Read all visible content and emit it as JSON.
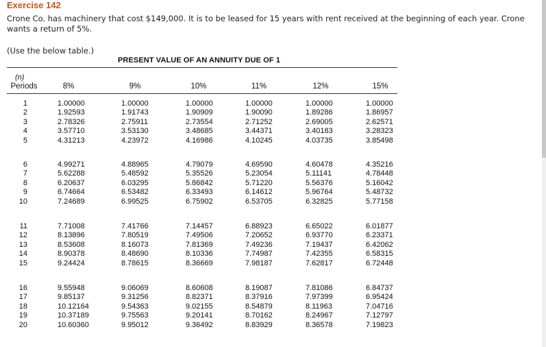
{
  "exercise": {
    "title": "Exercise 142",
    "problem": "Crone Co. has machinery that cost $149,000. It is to be leased for 15 years with rent received at the beginning of each year. Crone wants a return of 5%.",
    "note": "(Use the below table.)"
  },
  "table": {
    "title": "PRESENT VALUE OF AN ANNUITY DUE OF 1",
    "n_label": "(n)",
    "headers": [
      "Periods",
      "8%",
      "9%",
      "10%",
      "11%",
      "12%",
      "15%"
    ],
    "rows": [
      [
        "1",
        "1.00000",
        "1.00000",
        "1.00000",
        "1.00000",
        "1.00000",
        "1.00000"
      ],
      [
        "2",
        "1.92593",
        "1.91743",
        "1.90909",
        "1.90090",
        "1.89286",
        "1.86957"
      ],
      [
        "3",
        "2.78326",
        "2.75911",
        "2.73554",
        "2.71252",
        "2.69005",
        "2.62571"
      ],
      [
        "4",
        "3.57710",
        "3.53130",
        "3.48685",
        "3.44371",
        "3.40183",
        "3.28323"
      ],
      [
        "5",
        "4.31213",
        "4.23972",
        "4.16986",
        "4.10245",
        "4.03735",
        "3.85498"
      ],
      [
        "6",
        "4.99271",
        "4.88965",
        "4.79079",
        "4.69590",
        "4.60478",
        "4.35216"
      ],
      [
        "7",
        "5.62288",
        "5.48592",
        "5.35526",
        "5.23054",
        "5.11141",
        "4.78448"
      ],
      [
        "8",
        "6.20637",
        "6.03295",
        "5.86842",
        "5.71220",
        "5.56376",
        "5.16042"
      ],
      [
        "9",
        "6.74664",
        "6.53482",
        "6.33493",
        "6.14612",
        "5.96764",
        "5.48732"
      ],
      [
        "10",
        "7.24689",
        "6.99525",
        "6.75902",
        "6.53705",
        "6.32825",
        "5.77158"
      ],
      [
        "11",
        "7.71008",
        "7.41766",
        "7.14457",
        "6.88923",
        "6.65022",
        "6.01877"
      ],
      [
        "12",
        "8.13896",
        "7.80519",
        "7.49506",
        "7.20652",
        "6.93770",
        "6.23371"
      ],
      [
        "13",
        "8.53608",
        "8.16073",
        "7.81369",
        "7.49236",
        "7.19437",
        "6.42062"
      ],
      [
        "14",
        "8.90378",
        "8.48690",
        "8.10336",
        "7.74987",
        "7.42355",
        "6.58315"
      ],
      [
        "15",
        "9.24424",
        "8.78615",
        "8.36669",
        "7.98187",
        "7.62817",
        "6.72448"
      ],
      [
        "16",
        "9.55948",
        "9.06069",
        "8.60608",
        "8.19087",
        "7.81086",
        "6.84737"
      ],
      [
        "17",
        "9.85137",
        "9.31256",
        "8.82371",
        "8.37916",
        "7.97399",
        "6.95424"
      ],
      [
        "18",
        "10.12164",
        "9.54363",
        "9.02155",
        "8.54879",
        "8.11963",
        "7.04716"
      ],
      [
        "19",
        "10.37189",
        "9.75563",
        "9.20141",
        "8.70162",
        "8.24967",
        "7.12797"
      ],
      [
        "20",
        "10.60360",
        "9.95012",
        "9.36492",
        "8.83929",
        "8.36578",
        "7.19823"
      ]
    ]
  }
}
